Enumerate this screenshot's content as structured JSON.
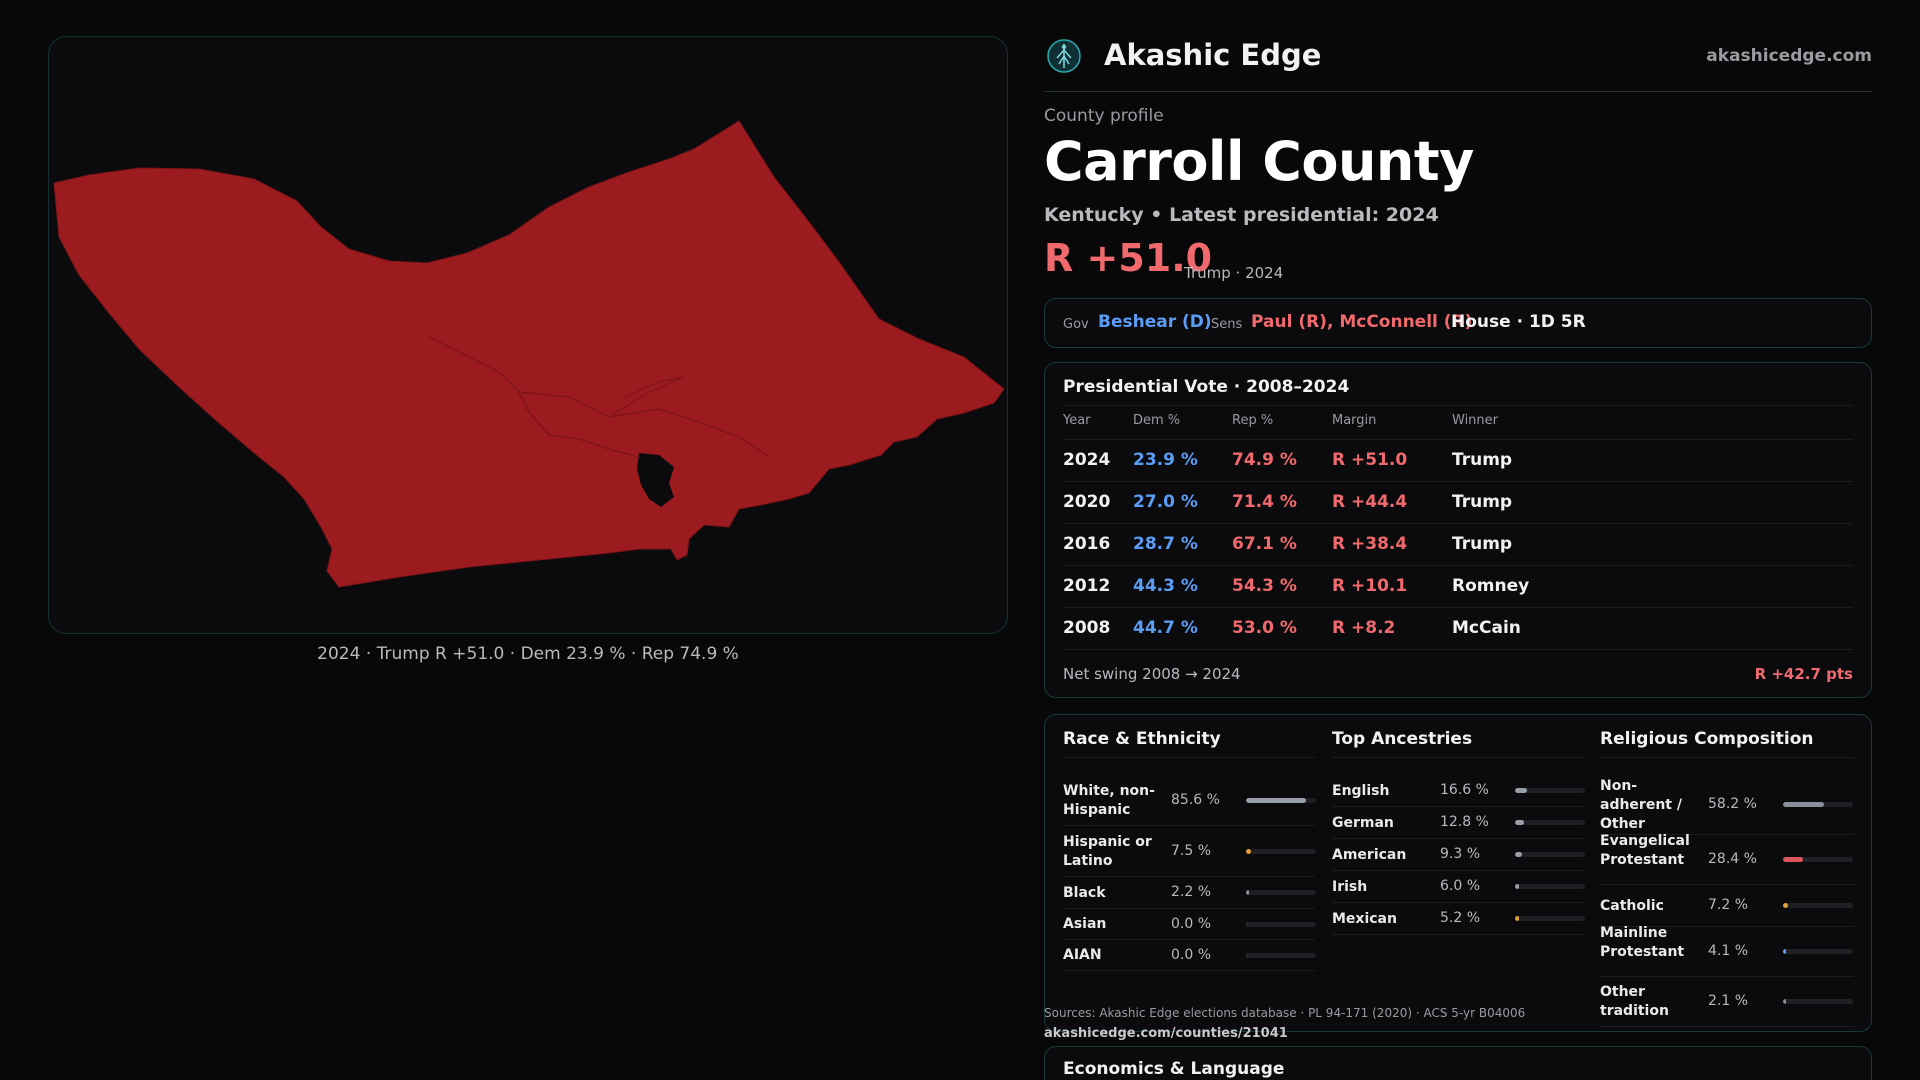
{
  "colors": {
    "dem": "#5b9cf5",
    "rep": "#f0696d",
    "neutral": "#f2f2f4",
    "county_fill": "#9b1b1f",
    "accent": "#2aa8b0"
  },
  "map": {
    "caption": "2024 · Trump R +51.0 · Dem 23.9 % · Rep 74.9 %"
  },
  "brand": {
    "name": "Akashic Edge",
    "url": "akashicedge.com",
    "logo_icon": "tree-globe-icon"
  },
  "profile": {
    "kicker": "County profile",
    "title": "Carroll County",
    "subtitle": "Kentucky • Latest presidential: 2024",
    "margin": "R +51.0",
    "margin_note": "Trump · 2024"
  },
  "officials": {
    "gov_label": "Gov",
    "gov": "Beshear (D)",
    "sens_label": "Sens",
    "sens": "Paul (R), McConnell (R)",
    "house": "House · 1D 5R"
  },
  "presidential": {
    "title": "Presidential Vote · 2008–2024",
    "headers": [
      "Year",
      "Dem %",
      "Rep %",
      "Margin",
      "Winner"
    ],
    "rows": [
      {
        "year": "2024",
        "dem": "23.9 %",
        "rep": "74.9 %",
        "margin": "R +51.0",
        "winner": "Trump"
      },
      {
        "year": "2020",
        "dem": "27.0 %",
        "rep": "71.4 %",
        "margin": "R +44.4",
        "winner": "Trump"
      },
      {
        "year": "2016",
        "dem": "28.7 %",
        "rep": "67.1 %",
        "margin": "R +38.4",
        "winner": "Trump"
      },
      {
        "year": "2012",
        "dem": "44.3 %",
        "rep": "54.3 %",
        "margin": "R +10.1",
        "winner": "Romney"
      },
      {
        "year": "2008",
        "dem": "44.7 %",
        "rep": "53.0 %",
        "margin": "R +8.2",
        "winner": "McCain"
      }
    ],
    "swing_label": "Net swing 2008 → 2024",
    "swing_value": "R +42.7 pts"
  },
  "race": {
    "title": "Race & Ethnicity",
    "items": [
      {
        "label": "White, non-Hispanic",
        "value": "85.6 %",
        "pct": 85.6,
        "color": "#9aa0ab"
      },
      {
        "label": "Hispanic or Latino",
        "value": "7.5 %",
        "pct": 7.5,
        "color": "#e5a13a"
      },
      {
        "label": "Black",
        "value": "2.2 %",
        "pct": 2.2,
        "color": "#8a8f99"
      },
      {
        "label": "Asian",
        "value": "0.0 %",
        "pct": 0.0,
        "color": "#8a8f99"
      },
      {
        "label": "AIAN",
        "value": "0.0 %",
        "pct": 0.0,
        "color": "#8a8f99"
      }
    ]
  },
  "ancestry": {
    "title": "Top Ancestries",
    "items": [
      {
        "label": "English",
        "value": "16.6 %",
        "pct": 16.6,
        "color": "#9aa0ab"
      },
      {
        "label": "German",
        "value": "12.8 %",
        "pct": 12.8,
        "color": "#9aa0ab"
      },
      {
        "label": "American",
        "value": "9.3 %",
        "pct": 9.3,
        "color": "#9aa0ab"
      },
      {
        "label": "Irish",
        "value": "6.0 %",
        "pct": 6.0,
        "color": "#9aa0ab"
      },
      {
        "label": "Mexican",
        "value": "5.2 %",
        "pct": 5.2,
        "color": "#e5a13a"
      }
    ]
  },
  "religion": {
    "title": "Religious Composition",
    "items": [
      {
        "label": "Non-adherent / Other",
        "value": "58.2 %",
        "pct": 58.2,
        "color": "#8a8f99"
      },
      {
        "label": "Evangelical Protestant",
        "value": "28.4 %",
        "pct": 28.4,
        "color": "#e0555a"
      },
      {
        "label": "Catholic",
        "value": "7.2 %",
        "pct": 7.2,
        "color": "#e5a13a"
      },
      {
        "label": "Mainline Protestant",
        "value": "4.1 %",
        "pct": 4.1,
        "color": "#5b9cf5"
      },
      {
        "label": "Other tradition",
        "value": "2.1 %",
        "pct": 2.1,
        "color": "#8a8f99"
      }
    ]
  },
  "sources": {
    "text": "Sources: Akashic Edge elections database · PL 94-171 (2020) · ACS 5-yr B04006",
    "url": "akashicedge.com/counties/21041"
  },
  "economics": {
    "title": "Economics & Language"
  }
}
